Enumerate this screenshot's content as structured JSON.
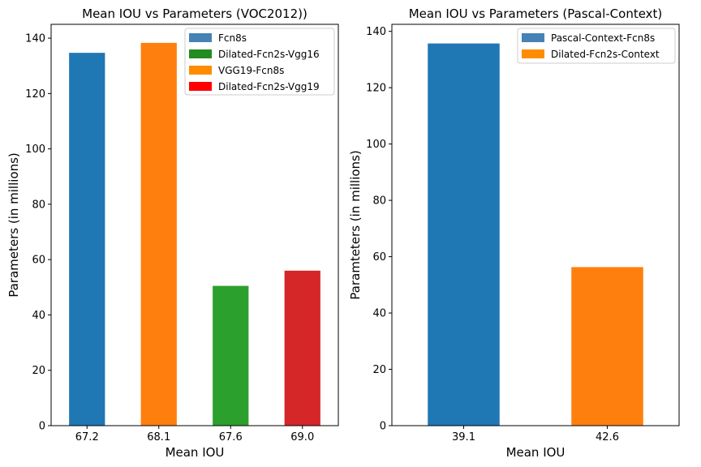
{
  "chart_data": [
    {
      "type": "bar",
      "title": "Mean IOU vs Parameters (VOC2012))",
      "xlabel": "Mean IOU",
      "ylabel": "Parameters (in millions)",
      "categories": [
        "67.2",
        "68.1",
        "67.6",
        "69.0"
      ],
      "values": [
        134.7,
        138.3,
        50.5,
        56.0
      ],
      "bar_colors": [
        "#1f77b4",
        "#ff7f0e",
        "#2ca02c",
        "#d62728"
      ],
      "ylim": [
        0,
        145
      ],
      "yticks": [
        0,
        20,
        40,
        60,
        80,
        100,
        120,
        140
      ],
      "grid": false,
      "legend": {
        "placement": "top-right",
        "entries": [
          {
            "label": "Fcn8s",
            "color": "#4682b4"
          },
          {
            "label": "Dilated-Fcn2s-Vgg16",
            "color": "#228b22"
          },
          {
            "label": "VGG19-Fcn8s",
            "color": "#ff8c00"
          },
          {
            "label": "Dilated-Fcn2s-Vgg19",
            "color": "#ff0000"
          }
        ]
      }
    },
    {
      "type": "bar",
      "title": "Mean IOU vs Parameters (Pascal-Context)",
      "xlabel": "Mean IOU",
      "ylabel": "Paramteters (in millions)",
      "categories": [
        "39.1",
        "42.6"
      ],
      "values": [
        135.7,
        56.3
      ],
      "bar_colors": [
        "#1f77b4",
        "#ff7f0e"
      ],
      "ylim": [
        0,
        142.5
      ],
      "yticks": [
        0,
        20,
        40,
        60,
        80,
        100,
        120,
        140
      ],
      "grid": false,
      "legend": {
        "placement": "top-right",
        "entries": [
          {
            "label": "Pascal-Context-Fcn8s",
            "color": "#4682b4"
          },
          {
            "label": "Dilated-Fcn2s-Context",
            "color": "#ff8c00"
          }
        ]
      }
    }
  ]
}
